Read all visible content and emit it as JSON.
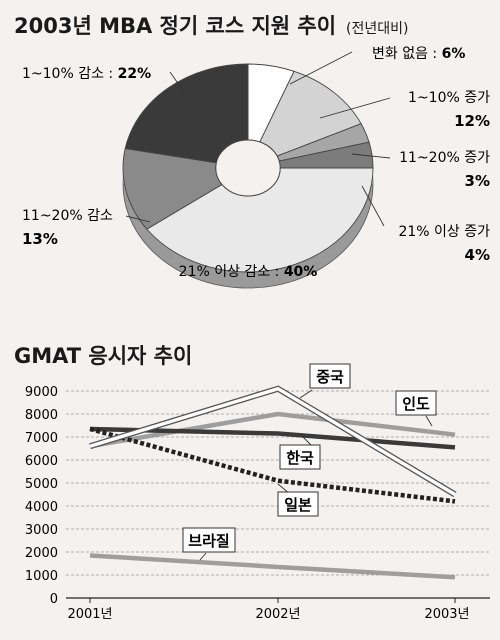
{
  "charts": {
    "pie_title": "2003년 MBA 정기 코스 지원 추이",
    "pie_subtitle": "(전년대비)",
    "line_title": "GMAT 응시자 추이"
  },
  "chart_data": [
    {
      "type": "pie",
      "title": "2003년 MBA 정기 코스 지원 추이",
      "subtitle": "(전년대비)",
      "slices": [
        {
          "label": "변화 없음",
          "value": 6,
          "value_label": "6%",
          "color": "#ffffff"
        },
        {
          "label": "1~10% 증가",
          "value": 12,
          "value_label": "12%",
          "color": "#d3d3d3"
        },
        {
          "label": "11~20% 증가",
          "value": 3,
          "value_label": "3%",
          "color": "#a6a6a6"
        },
        {
          "label": "21% 이상 증가",
          "value": 4,
          "value_label": "4%",
          "color": "#7c7c7c"
        },
        {
          "label": "21% 이상 감소",
          "value": 40,
          "value_label": "40%",
          "color": "#e9e9e9"
        },
        {
          "label": "11~20% 감소",
          "value": 13,
          "value_label": "13%",
          "color": "#8a8a8a"
        },
        {
          "label": "1~10% 감소",
          "value": 22,
          "value_label": "22%",
          "color": "#3a3a3a"
        }
      ]
    },
    {
      "type": "line",
      "title": "GMAT 응시자 추이",
      "x": [
        "2001년",
        "2002년",
        "2003년"
      ],
      "ylim": [
        0,
        9000
      ],
      "yticks": [
        0,
        1000,
        2000,
        3000,
        4000,
        5000,
        6000,
        7000,
        8000,
        9000
      ],
      "grid": true,
      "series": [
        {
          "name": "중국",
          "values": [
            6600,
            9100,
            4500
          ],
          "style": "double-white"
        },
        {
          "name": "인도",
          "values": [
            6600,
            8000,
            7100
          ],
          "style": "gray-thick"
        },
        {
          "name": "한국",
          "values": [
            7350,
            7150,
            6550
          ],
          "style": "dark-thick"
        },
        {
          "name": "일본",
          "values": [
            7350,
            5100,
            4200
          ],
          "style": "dotted-thick"
        },
        {
          "name": "브라질",
          "values": [
            1850,
            1350,
            900
          ],
          "style": "gray-thick"
        }
      ]
    }
  ]
}
